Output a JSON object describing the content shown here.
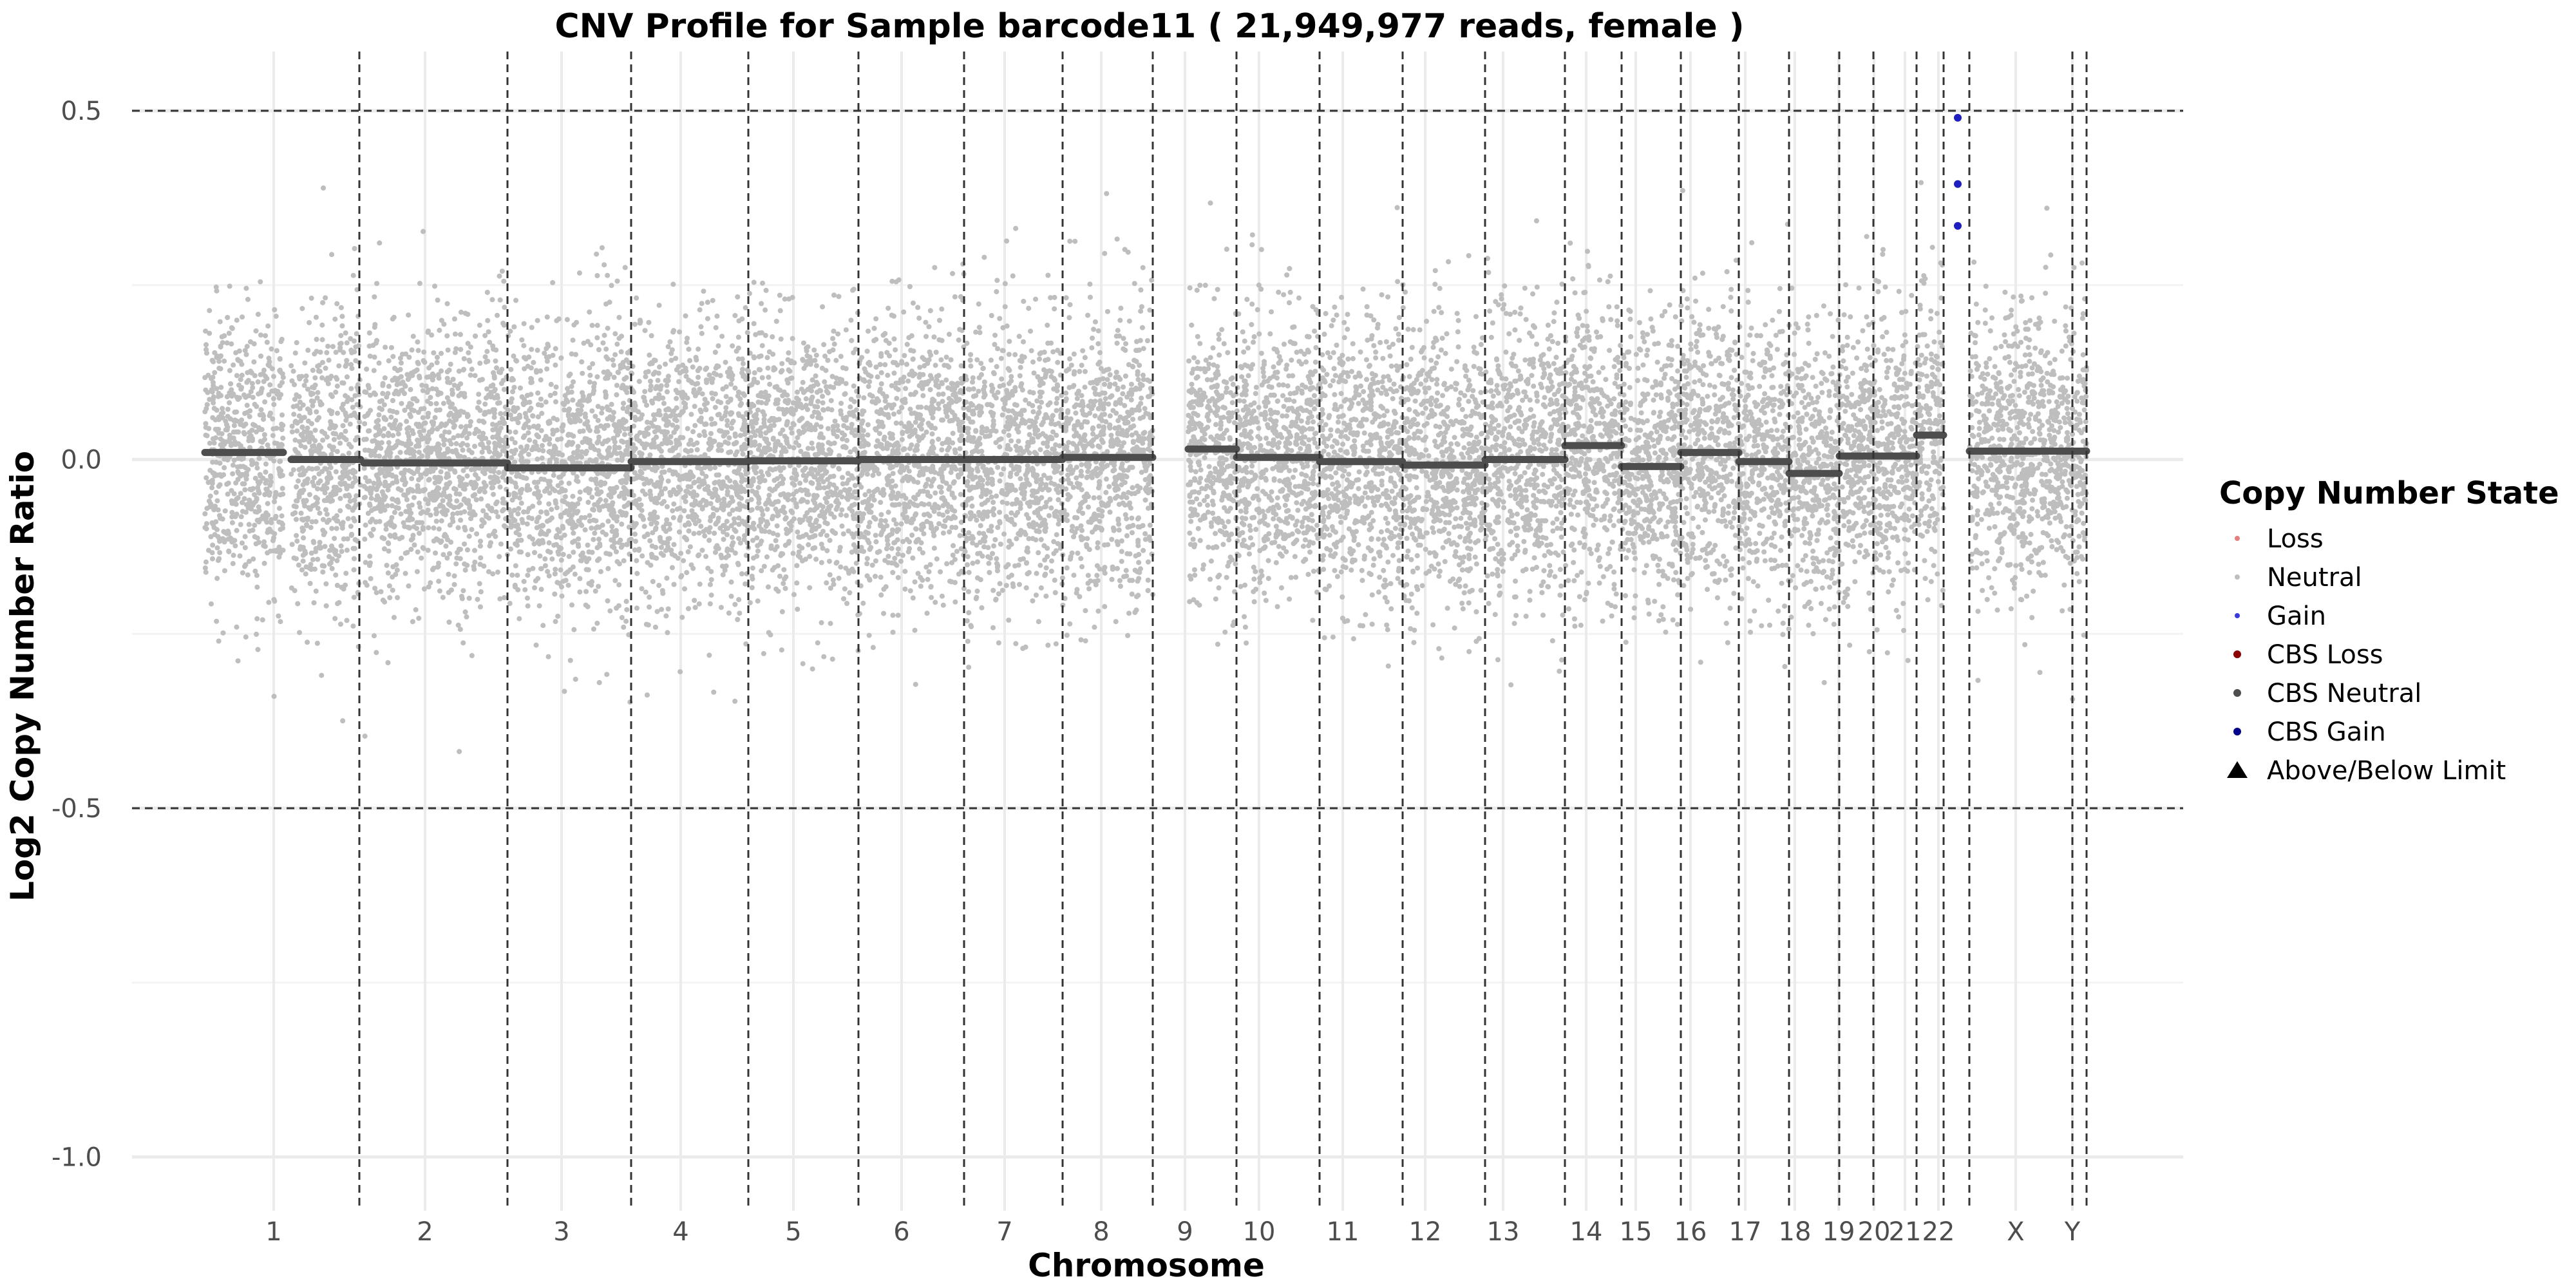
{
  "chart_data": {
    "type": "scatter",
    "title": "CNV Profile for Sample barcode11 ( 21,949,977 reads, female )",
    "xlabel": "Chromosome",
    "ylabel": "Log2 Copy Number Ratio",
    "ylim": [
      -1.1,
      0.58
    ],
    "yticks": [
      0.5,
      0.0,
      -0.5,
      -1.0
    ],
    "ytick_labels": [
      "0.5",
      "0.0",
      "-0.5",
      "-1.0"
    ],
    "reference_lines": [
      0.5,
      -0.5
    ],
    "grid": true,
    "legend_position": "right",
    "chromosomes": [
      {
        "name": "1",
        "segment": 0.01
      },
      {
        "name": "2",
        "segment": 0.0
      },
      {
        "name": "3",
        "segment": -0.005
      },
      {
        "name": "4",
        "segment": -0.012
      },
      {
        "name": "5",
        "segment": -0.003
      },
      {
        "name": "6",
        "segment": -0.002
      },
      {
        "name": "7",
        "segment": 0.0
      },
      {
        "name": "8",
        "segment": 0.0
      },
      {
        "name": "9",
        "segment": 0.003
      },
      {
        "name": "10",
        "segment": 0.015
      },
      {
        "name": "11",
        "segment": 0.003
      },
      {
        "name": "12",
        "segment": -0.003
      },
      {
        "name": "13",
        "segment": -0.008
      },
      {
        "name": "14",
        "segment": 0.0
      },
      {
        "name": "15",
        "segment": 0.02
      },
      {
        "name": "16",
        "segment": -0.01
      },
      {
        "name": "17",
        "segment": 0.01
      },
      {
        "name": "18",
        "segment": -0.003
      },
      {
        "name": "19",
        "segment": -0.02
      },
      {
        "name": "20",
        "segment": 0.005
      },
      {
        "name": "21",
        "segment": 0.005
      },
      {
        "name": "22",
        "segment": 0.035
      },
      {
        "name": "X",
        "segment": 0.012
      },
      {
        "name": "Y",
        "segment": 0.012
      }
    ],
    "gain_points": [
      {
        "chromosome": "22",
        "value": 0.49
      },
      {
        "chromosome": "22",
        "value": 0.395
      },
      {
        "chromosome": "22",
        "value": 0.335
      }
    ],
    "neutral_spread": {
      "sd": 0.1,
      "count": 14000
    },
    "legend": {
      "title": "Copy Number State",
      "entries": [
        {
          "label": "Loss",
          "color": "#e57f7f",
          "shape": "dot-small"
        },
        {
          "label": "Neutral",
          "color": "#bebebe",
          "shape": "dot-small"
        },
        {
          "label": "Gain",
          "color": "#3b3bd9",
          "shape": "dot-small"
        },
        {
          "label": "CBS Loss",
          "color": "#8b0000",
          "shape": "dot"
        },
        {
          "label": "CBS Neutral",
          "color": "#4d4d4d",
          "shape": "dot"
        },
        {
          "label": "CBS Gain",
          "color": "#00008b",
          "shape": "dot"
        },
        {
          "label": "Above/Below Limit",
          "color": "#000000",
          "shape": "triangle"
        }
      ]
    },
    "colors": {
      "neutral": "#bebebe",
      "segment": "#4d4d4d",
      "gain": "#1f1fbf",
      "gridline": "#ebebeb",
      "dashed": "#333333"
    }
  }
}
